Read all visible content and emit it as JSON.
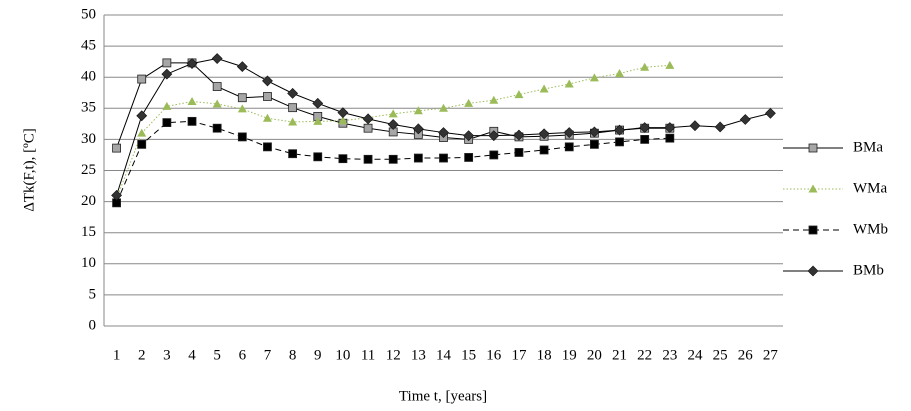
{
  "chart_data": {
    "type": "line",
    "y_label": "ΔTk(F,t), [ºC]",
    "x_label": "Time t, [years]",
    "categories": [
      "1",
      "2",
      "3",
      "4",
      "5",
      "6",
      "7",
      "8",
      "9",
      "10",
      "11",
      "12",
      "13",
      "14",
      "15",
      "16",
      "17",
      "18",
      "19",
      "20",
      "21",
      "22",
      "23",
      "24",
      "25",
      "26",
      "27"
    ],
    "ylim": [
      0,
      50
    ],
    "yticks": [
      0,
      5,
      10,
      15,
      20,
      25,
      30,
      35,
      40,
      45,
      50
    ],
    "grid": true,
    "legend": "right",
    "series": [
      {
        "name": "BMa",
        "color": "#a6a6a6",
        "marker": "square",
        "dash": "solid",
        "values": [
          28.6,
          39.7,
          42.3,
          42.3,
          38.5,
          36.7,
          36.9,
          35.1,
          33.7,
          32.6,
          31.8,
          31.2,
          30.8,
          30.3,
          30.0,
          31.3,
          30.4,
          30.5,
          30.7,
          31.0,
          31.5,
          31.8,
          31.8,
          null,
          null,
          null,
          null
        ]
      },
      {
        "name": "WMa",
        "color": "#9bbb59",
        "marker": "triangle",
        "dash": "dotted",
        "values": [
          20.5,
          31.0,
          35.3,
          36.1,
          35.7,
          34.9,
          33.4,
          32.8,
          32.9,
          33.0,
          33.5,
          34.1,
          34.6,
          35.0,
          35.8,
          36.3,
          37.2,
          38.1,
          38.9,
          39.9,
          40.6,
          41.6,
          41.9,
          null,
          null,
          null,
          null
        ]
      },
      {
        "name": "WMb",
        "color": "#000000",
        "marker": "square",
        "dash": "dashed",
        "values": [
          19.8,
          29.2,
          32.7,
          32.9,
          31.8,
          30.4,
          28.8,
          27.7,
          27.2,
          26.9,
          26.8,
          26.8,
          27.0,
          27.0,
          27.1,
          27.5,
          27.9,
          28.3,
          28.8,
          29.2,
          29.6,
          30.0,
          30.2,
          null,
          null,
          null,
          null
        ]
      },
      {
        "name": "BMb",
        "color": "#333333",
        "marker": "diamond",
        "dash": "solid",
        "values": [
          21.0,
          33.8,
          40.5,
          42.2,
          43.0,
          41.7,
          39.4,
          37.4,
          35.8,
          34.3,
          33.3,
          32.4,
          31.7,
          31.1,
          30.6,
          30.6,
          30.7,
          30.9,
          31.1,
          31.2,
          31.5,
          31.9,
          31.9,
          32.2,
          32.0,
          33.2,
          34.2
        ]
      }
    ]
  }
}
